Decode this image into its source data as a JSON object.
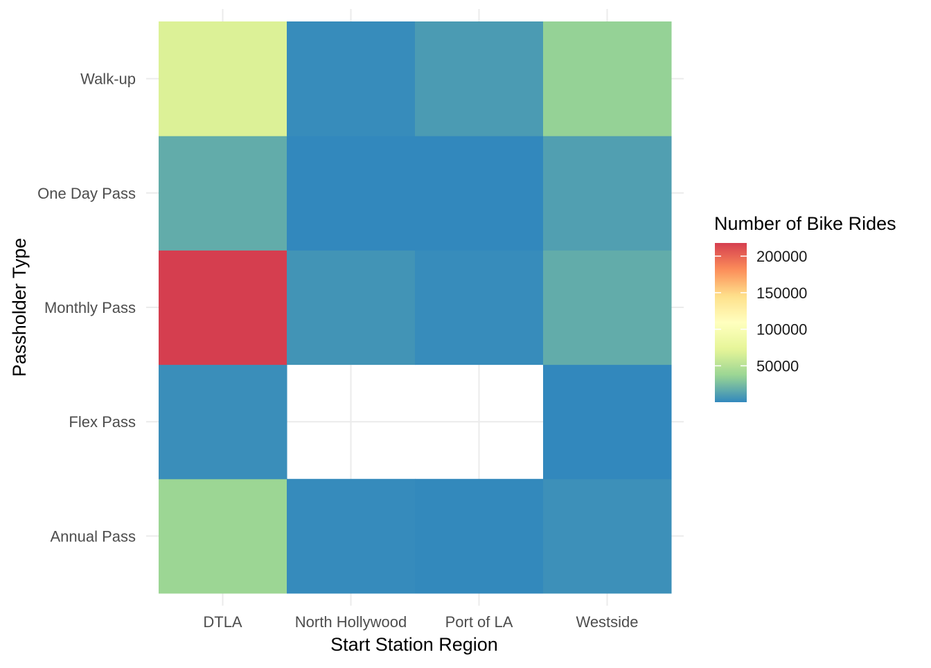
{
  "chart_data": {
    "type": "heatmap",
    "title": "",
    "xlabel": "Start Station Region",
    "ylabel": "Passholder Type",
    "x_categories": [
      "DTLA",
      "North Hollywood",
      "Port of LA",
      "Westside"
    ],
    "y_categories": [
      "Annual Pass",
      "Flex Pass",
      "Monthly Pass",
      "One Day Pass",
      "Walk-up"
    ],
    "values": [
      [
        38000,
        1500,
        700,
        4000
      ],
      [
        3000,
        null,
        null,
        300
      ],
      [
        218000,
        6000,
        2000,
        17000
      ],
      [
        17000,
        300,
        200,
        11000
      ],
      [
        68000,
        2000,
        9000,
        35000
      ]
    ],
    "legend": {
      "title": "Number of Bike Rides",
      "ticks": [
        50000,
        100000,
        150000,
        200000
      ],
      "tick_labels": [
        "50000",
        "100000",
        "150000",
        "200000"
      ],
      "range": [
        200,
        218000
      ],
      "palette": [
        "#3288bd",
        "#99d594",
        "#e6f598",
        "#ffffbf",
        "#fee08b",
        "#fc8d59",
        "#d53e4f"
      ],
      "placement": "right"
    },
    "grid": true,
    "missing_color": "#ffffff"
  }
}
